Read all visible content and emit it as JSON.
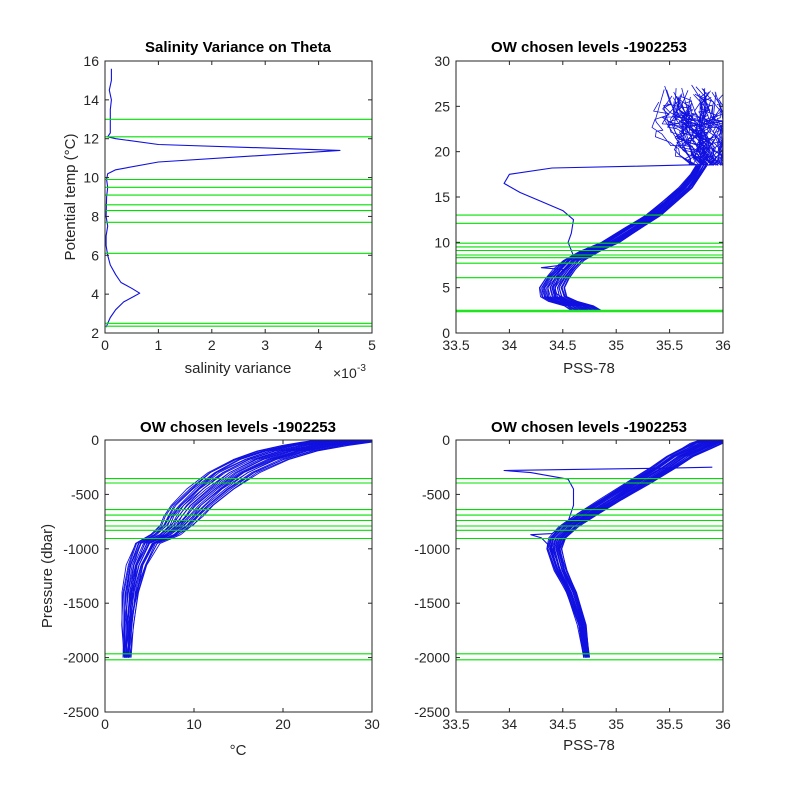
{
  "figure": {
    "background": "#ffffff"
  },
  "colors": {
    "profile": "#1010e0",
    "level": "#00e000",
    "axis": "#262626"
  },
  "chart_data": [
    {
      "type": "line",
      "title": "Salinity Variance on Theta",
      "xlabel": "salinity variance",
      "ylabel": "Potential temp (°C)",
      "x_exponent_label": "×10",
      "x_exponent_power": "-3",
      "xlim": [
        0,
        5
      ],
      "ylim": [
        2,
        16
      ],
      "xticks": [
        0,
        1,
        2,
        3,
        4,
        5
      ],
      "yticks": [
        2,
        4,
        6,
        8,
        10,
        12,
        14,
        16
      ],
      "tick_labels_x": [
        "0",
        "1",
        "2",
        "3",
        "4",
        "5"
      ],
      "tick_labels_y": [
        "2",
        "4",
        "6",
        "8",
        "10",
        "12",
        "14",
        "16"
      ],
      "x_units_scale": 0.001,
      "chosen_levels": [
        13.0,
        12.1,
        9.9,
        9.5,
        9.1,
        8.6,
        8.3,
        7.7,
        6.1,
        2.5,
        2.35
      ],
      "series": [
        {
          "points": [
            [
              0.02,
              2.3
            ],
            [
              0.05,
              2.5
            ],
            [
              0.1,
              2.8
            ],
            [
              0.2,
              3.2
            ],
            [
              0.35,
              3.6
            ],
            [
              0.55,
              3.9
            ],
            [
              0.65,
              4.05
            ],
            [
              0.5,
              4.3
            ],
            [
              0.3,
              4.6
            ],
            [
              0.2,
              5.0
            ],
            [
              0.1,
              5.5
            ],
            [
              0.05,
              6.0
            ],
            [
              0.02,
              6.5
            ],
            [
              0.02,
              7.0
            ],
            [
              0.05,
              7.5
            ],
            [
              0.02,
              8.0
            ],
            [
              0.03,
              9.0
            ],
            [
              0.05,
              9.5
            ],
            [
              0.03,
              9.9
            ],
            [
              0.05,
              10.2
            ],
            [
              0.2,
              10.4
            ],
            [
              1.0,
              10.8
            ],
            [
              4.4,
              11.4
            ],
            [
              1.0,
              11.7
            ],
            [
              0.2,
              12.0
            ],
            [
              0.05,
              12.1
            ],
            [
              0.1,
              12.3
            ],
            [
              0.1,
              13.0
            ],
            [
              0.1,
              13.5
            ],
            [
              0.12,
              14.0
            ],
            [
              0.08,
              14.5
            ],
            [
              0.12,
              15.0
            ],
            [
              0.12,
              15.6
            ]
          ]
        }
      ]
    },
    {
      "type": "line",
      "title": "OW chosen levels -1902253",
      "xlabel": "PSS-78",
      "ylabel": "",
      "xlim": [
        33.5,
        36
      ],
      "ylim": [
        0,
        30
      ],
      "xticks": [
        33.5,
        34,
        34.5,
        35,
        35.5,
        36
      ],
      "yticks": [
        0,
        5,
        10,
        15,
        20,
        25,
        30
      ],
      "tick_labels_x": [
        "33.5",
        "34",
        "34.5",
        "35",
        "35.5",
        "36"
      ],
      "tick_labels_y": [
        "0",
        "5",
        "10",
        "15",
        "20",
        "25",
        "30"
      ],
      "chosen_levels": [
        13.0,
        12.1,
        9.9,
        9.5,
        9.1,
        8.6,
        8.3,
        7.7,
        6.1,
        2.5,
        2.35
      ],
      "base_profile": [
        [
          34.72,
          2.5
        ],
        [
          34.65,
          3.0
        ],
        [
          34.5,
          3.5
        ],
        [
          34.42,
          4.0
        ],
        [
          34.4,
          5.0
        ],
        [
          34.45,
          6.0
        ],
        [
          34.52,
          7.0
        ],
        [
          34.6,
          8.0
        ],
        [
          34.75,
          9.0
        ],
        [
          34.95,
          10.0
        ],
        [
          35.15,
          11.5
        ],
        [
          35.35,
          13.0
        ],
        [
          35.5,
          14.5
        ],
        [
          35.65,
          16.0
        ],
        [
          35.75,
          17.5
        ],
        [
          35.8,
          18.5
        ]
      ],
      "outlier_profile": [
        [
          34.72,
          2.5
        ],
        [
          34.55,
          3.5
        ],
        [
          34.42,
          4.5
        ],
        [
          34.45,
          6.0
        ],
        [
          34.5,
          7.0
        ],
        [
          34.3,
          7.2
        ],
        [
          34.5,
          7.5
        ],
        [
          34.6,
          8.5
        ],
        [
          34.55,
          10.0
        ],
        [
          34.58,
          11.0
        ],
        [
          34.6,
          12.5
        ],
        [
          34.5,
          13.5
        ],
        [
          34.3,
          14.5
        ],
        [
          34.1,
          15.5
        ],
        [
          33.95,
          16.5
        ],
        [
          34.0,
          17.5
        ],
        [
          34.4,
          18.2
        ],
        [
          35.2,
          18.4
        ],
        [
          35.85,
          18.6
        ]
      ],
      "band_offsets": [
        -0.12,
        -0.08,
        -0.04,
        0.0,
        0.04,
        0.08,
        0.12
      ],
      "surface_cloud": {
        "x_range": [
          35.3,
          36.0
        ],
        "y_range": [
          18.5,
          27.5
        ],
        "n_profiles": 60
      }
    },
    {
      "type": "line",
      "title": "OW chosen levels -1902253",
      "xlabel": "°C",
      "ylabel": "Pressure (dbar)",
      "xlim": [
        0,
        30
      ],
      "ylim": [
        -2500,
        0
      ],
      "xticks": [
        0,
        10,
        20,
        30
      ],
      "yticks": [
        -2500,
        -2000,
        -1500,
        -1000,
        -500,
        0
      ],
      "tick_labels_x": [
        "0",
        "10",
        "20",
        "30"
      ],
      "tick_labels_y": [
        "-2500",
        "-2000",
        "-1500",
        "-1000",
        "-500",
        "0"
      ],
      "chosen_levels": [
        -355,
        -395,
        -640,
        -690,
        -740,
        -790,
        -830,
        -905,
        -1965,
        -2020
      ],
      "base_profile": [
        [
          2.4,
          -2000
        ],
        [
          2.5,
          -1700
        ],
        [
          2.8,
          -1400
        ],
        [
          3.4,
          -1150
        ],
        [
          4.5,
          -950
        ],
        [
          6.5,
          -870
        ],
        [
          7.8,
          -780
        ],
        [
          8.5,
          -700
        ],
        [
          9.5,
          -600
        ],
        [
          11.5,
          -450
        ],
        [
          14.0,
          -300
        ],
        [
          17.0,
          -180
        ],
        [
          20.0,
          -100
        ],
        [
          23.0,
          -50
        ],
        [
          25.5,
          -20
        ],
        [
          27.5,
          0
        ]
      ],
      "band_offsets": [
        -1.5,
        -1.0,
        -0.5,
        0.0,
        0.5,
        1.0,
        1.5,
        2.0
      ]
    },
    {
      "type": "line",
      "title": "OW chosen levels -1902253",
      "xlabel": "PSS-78",
      "ylabel": "",
      "xlim": [
        33.5,
        36
      ],
      "ylim": [
        -2500,
        0
      ],
      "xticks": [
        33.5,
        34,
        34.5,
        35,
        35.5,
        36
      ],
      "yticks": [
        -2500,
        -2000,
        -1500,
        -1000,
        -500,
        0
      ],
      "tick_labels_x": [
        "33.5",
        "34",
        "34.5",
        "35",
        "35.5",
        "36"
      ],
      "tick_labels_y": [
        "-2500",
        "-2000",
        "-1500",
        "-1000",
        "-500",
        "0"
      ],
      "chosen_levels": [
        -355,
        -395,
        -640,
        -690,
        -740,
        -790,
        -830,
        -905,
        -1965,
        -2020
      ],
      "base_profile": [
        [
          34.72,
          -2000
        ],
        [
          34.68,
          -1700
        ],
        [
          34.58,
          -1400
        ],
        [
          34.48,
          -1200
        ],
        [
          34.42,
          -1000
        ],
        [
          34.45,
          -900
        ],
        [
          34.55,
          -800
        ],
        [
          34.7,
          -700
        ],
        [
          34.95,
          -550
        ],
        [
          35.2,
          -400
        ],
        [
          35.45,
          -250
        ],
        [
          35.6,
          -150
        ],
        [
          35.75,
          -80
        ],
        [
          35.85,
          -30
        ],
        [
          35.95,
          0
        ]
      ],
      "outlier_profile": [
        [
          34.72,
          -2000
        ],
        [
          34.65,
          -1600
        ],
        [
          34.48,
          -1200
        ],
        [
          34.4,
          -1000
        ],
        [
          34.3,
          -900
        ],
        [
          34.2,
          -870
        ],
        [
          34.4,
          -860
        ],
        [
          34.55,
          -750
        ],
        [
          34.6,
          -600
        ],
        [
          34.6,
          -450
        ],
        [
          34.55,
          -360
        ],
        [
          34.2,
          -300
        ],
        [
          33.95,
          -280
        ],
        [
          34.6,
          -270
        ],
        [
          35.4,
          -260
        ],
        [
          35.9,
          -250
        ]
      ],
      "band_offsets": [
        -0.1,
        -0.06,
        -0.03,
        0.0,
        0.03,
        0.06,
        0.1
      ]
    }
  ]
}
